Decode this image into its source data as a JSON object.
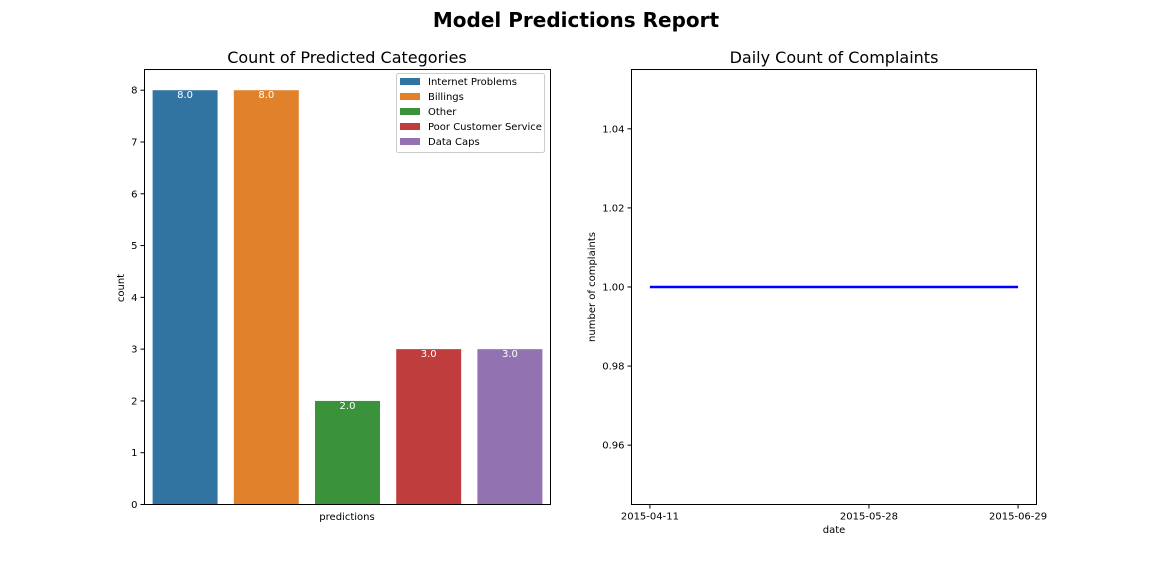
{
  "report": {
    "title": "Model Predictions Report"
  },
  "chart_data": [
    {
      "type": "bar",
      "title": "Count of Predicted Categories",
      "xlabel": "predictions",
      "ylabel": "count",
      "categories": [
        "Internet Problems",
        "Billings",
        "Other",
        "Poor Customer Service",
        "Data Caps"
      ],
      "values": [
        8.0,
        8.0,
        2.0,
        3.0,
        3.0
      ],
      "data_labels": [
        "8.0",
        "8.0",
        "2.0",
        "3.0",
        "3.0"
      ],
      "colors": [
        "#3274a1",
        "#e1812c",
        "#3a923a",
        "#c03d3e",
        "#9372b2"
      ],
      "ylim": [
        0,
        8.4
      ],
      "yticks": [
        "0",
        "1",
        "2",
        "3",
        "4",
        "5",
        "6",
        "7",
        "8"
      ],
      "legend": "top-right",
      "grid": false
    },
    {
      "type": "line",
      "title": "Daily Count of Complaints",
      "xlabel": "date",
      "ylabel": "number of complaints",
      "x": [
        "2015-04-11",
        "2015-06-29"
      ],
      "y": [
        1.0,
        1.0
      ],
      "xticks": [
        "2015-04-11",
        "2015-05-28",
        "2015-06-29"
      ],
      "yticks": [
        "0.96",
        "0.98",
        "1.00",
        "1.02",
        "1.04"
      ],
      "ylim": [
        0.945,
        1.055
      ],
      "color": "#0000ff",
      "grid": false
    }
  ]
}
